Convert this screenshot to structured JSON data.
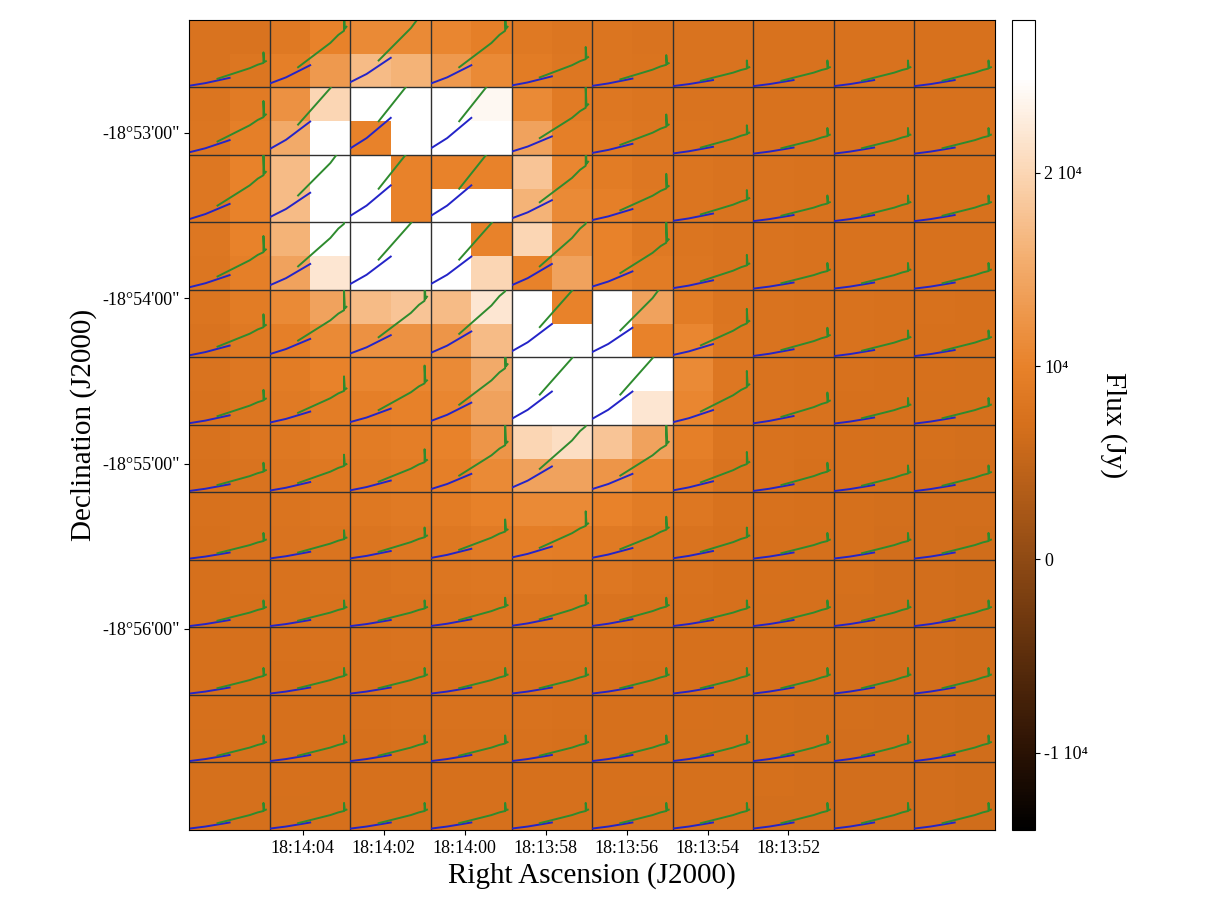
{
  "chart_data": {
    "type": "heatmap",
    "xlabel": "Right Ascension (J2000)",
    "ylabel": "Declination (J2000)",
    "xlim": [
      66.8,
      46.9
    ],
    "ylim": [
      -68233,
      -67939
    ],
    "xticks": [
      {
        "value": 64,
        "label": "18:14:04"
      },
      {
        "value": 62,
        "label": "18:14:02"
      },
      {
        "value": 60,
        "label": "18:14:00"
      },
      {
        "value": 58,
        "label": "18:13:58"
      },
      {
        "value": 56,
        "label": "18:13:56"
      },
      {
        "value": 54,
        "label": "18:13:54"
      },
      {
        "value": 52,
        "label": "18:13:52"
      }
    ],
    "yticks": [
      {
        "value": -67980,
        "label": "-18°53'00\""
      },
      {
        "value": -68040,
        "label": "-18°54'00\""
      },
      {
        "value": -68100,
        "label": "-18°55'00\""
      },
      {
        "value": -68160,
        "label": "-18°56'00\""
      }
    ],
    "cells": [
      [
        7500,
        7600,
        8500,
        10000,
        11000,
        11000,
        10500,
        9500,
        8500,
        8000,
        7800,
        7600,
        7500,
        7500,
        7400,
        7400,
        7300,
        7300,
        7200,
        7200
      ],
      [
        7600,
        8000,
        9500,
        13000,
        17000,
        16000,
        13000,
        11000,
        9000,
        8200,
        7900,
        7700,
        7500,
        7500,
        7400,
        7400,
        7300,
        7300,
        7200,
        7200
      ],
      [
        7800,
        8800,
        12000,
        20000,
        28000,
        29000,
        28000,
        24000,
        11000,
        8800,
        8200,
        7800,
        7600,
        7500,
        7400,
        7400,
        7300,
        7300,
        7200,
        7200
      ],
      [
        8000,
        9500,
        15000,
        27000,
        10000,
        29000,
        29000,
        28000,
        14000,
        9500,
        8500,
        8000,
        7700,
        7500,
        7400,
        7400,
        7300,
        7300,
        7200,
        7200
      ],
      [
        8200,
        10000,
        17000,
        28000,
        29000,
        10000,
        10000,
        10000,
        18000,
        10500,
        9000,
        8200,
        7800,
        7600,
        7500,
        7400,
        7300,
        7300,
        7200,
        7200
      ],
      [
        8200,
        10000,
        17000,
        28000,
        29000,
        10000,
        29000,
        28000,
        16000,
        11000,
        9500,
        8300,
        7800,
        7600,
        7500,
        7400,
        7300,
        7300,
        7200,
        7200
      ],
      [
        8200,
        10000,
        16000,
        27000,
        29000,
        29000,
        28000,
        10000,
        20000,
        12000,
        10000,
        8500,
        7900,
        7600,
        7500,
        7400,
        7300,
        7300,
        7200,
        7200
      ],
      [
        8000,
        9500,
        14000,
        22000,
        27000,
        28000,
        25000,
        20000,
        10000,
        14000,
        10000,
        9000,
        8000,
        7600,
        7500,
        7400,
        7300,
        7300,
        7200,
        7200
      ],
      [
        7800,
        9000,
        11000,
        14000,
        17000,
        18000,
        17000,
        22000,
        29000,
        10000,
        27000,
        14000,
        9000,
        7800,
        7500,
        7400,
        7300,
        7200,
        7200,
        7100
      ],
      [
        7600,
        8500,
        9500,
        11000,
        12000,
        12000,
        12500,
        17000,
        29000,
        29000,
        28000,
        10000,
        10500,
        8000,
        7500,
        7400,
        7300,
        7200,
        7100,
        7000
      ],
      [
        7500,
        8200,
        9000,
        10000,
        10500,
        10500,
        11000,
        15000,
        29000,
        29000,
        29000,
        26000,
        11000,
        8200,
        7600,
        7400,
        7200,
        7100,
        7000,
        6900
      ],
      [
        7400,
        8000,
        8600,
        9200,
        9500,
        9800,
        10500,
        14000,
        28000,
        29000,
        28000,
        22000,
        10500,
        8000,
        7500,
        7300,
        7100,
        7000,
        6900,
        6800
      ],
      [
        7300,
        7800,
        8300,
        8800,
        9000,
        9300,
        10000,
        12500,
        20000,
        21000,
        18000,
        14000,
        9500,
        7800,
        7400,
        7200,
        7000,
        6900,
        6800,
        6700
      ],
      [
        7200,
        7600,
        8000,
        8300,
        8600,
        9000,
        9500,
        11000,
        14000,
        14000,
        12500,
        10500,
        8800,
        7600,
        7300,
        7100,
        7000,
        6800,
        6700,
        6600
      ],
      [
        7200,
        7400,
        7700,
        8000,
        8300,
        8600,
        9000,
        9800,
        11000,
        11000,
        10000,
        9000,
        8200,
        7400,
        7200,
        7000,
        6900,
        6700,
        6600,
        6500
      ],
      [
        7100,
        7300,
        7500,
        7700,
        7900,
        8100,
        8400,
        8800,
        9300,
        9200,
        8700,
        8100,
        7600,
        7200,
        7000,
        6900,
        6800,
        6600,
        6500,
        6400
      ],
      [
        7100,
        7200,
        7400,
        7500,
        7600,
        7800,
        8000,
        8200,
        8500,
        8400,
        8100,
        7700,
        7400,
        7100,
        7000,
        6900,
        6800,
        6600,
        6500,
        6400
      ],
      [
        7000,
        7100,
        7300,
        7400,
        7500,
        7600,
        7700,
        7800,
        7900,
        7800,
        7600,
        7400,
        7200,
        7000,
        6900,
        6800,
        6700,
        6600,
        6500,
        6400
      ],
      [
        7000,
        7100,
        7200,
        7300,
        7400,
        7500,
        7500,
        7600,
        7600,
        7500,
        7400,
        7200,
        7100,
        7000,
        6900,
        6800,
        6700,
        6600,
        6500,
        6400
      ],
      [
        7000,
        7000,
        7100,
        7200,
        7300,
        7400,
        7400,
        7400,
        7400,
        7300,
        7200,
        7100,
        7000,
        6900,
        6800,
        6800,
        6700,
        6600,
        6500,
        6400
      ],
      [
        7000,
        7000,
        7100,
        7100,
        7200,
        7300,
        7300,
        7300,
        7300,
        7200,
        7100,
        7000,
        7000,
        6900,
        6800,
        6700,
        6700,
        6600,
        6500,
        6400
      ],
      [
        6900,
        7000,
        7000,
        7100,
        7100,
        7200,
        7200,
        7200,
        7200,
        7100,
        7100,
        7000,
        6900,
        6900,
        6800,
        6700,
        6600,
        6600,
        6500,
        6400
      ],
      [
        6900,
        6900,
        7000,
        7000,
        7100,
        7100,
        7100,
        7100,
        7100,
        7100,
        7000,
        7000,
        6900,
        6800,
        6800,
        6700,
        6600,
        6500,
        6500,
        6400
      ],
      [
        6900,
        6900,
        6900,
        7000,
        7000,
        7000,
        7000,
        7000,
        7000,
        7000,
        7000,
        6900,
        6900,
        6800,
        6700,
        6700,
        6600,
        6500,
        6500,
        6400
      ]
    ],
    "colorbar": {
      "lim": [
        -14000,
        27900
      ],
      "ticks": [
        {
          "value": -10000,
          "label": "-1 10⁴"
        },
        0,
        {
          "value": 10000,
          "label": "10⁴"
        },
        {
          "value": 20000,
          "label": "2 10⁴"
        }
      ],
      "label": "Flux (Jy)"
    },
    "spectra": {
      "series": [
        {
          "color": "#2424c8",
          "x": [
            0.0,
            0.1,
            0.2,
            0.3,
            0.4,
            0.5
          ],
          "y": [
            0.02,
            0.035,
            0.05,
            0.07,
            0.09,
            0.11
          ]
        },
        {
          "color": "#2e8b2e",
          "x": [
            0.35,
            0.45,
            0.55,
            0.65,
            0.75,
            0.85,
            0.92,
            0.92,
            0.93,
            0.95
          ],
          "y": [
            0.1,
            0.13,
            0.16,
            0.19,
            0.22,
            0.26,
            0.28,
            0.4,
            0.29,
            0.3
          ]
        }
      ],
      "amplitude": [
        [
          1.3,
          3.0,
          4.0,
          3.0,
          1.5,
          1.2,
          1.0,
          1.0,
          1.0,
          1.0
        ],
        [
          2.0,
          4.5,
          5.0,
          5.0,
          2.5,
          1.5,
          1.1,
          1.0,
          1.0,
          1.0
        ],
        [
          2.5,
          4.0,
          5.0,
          5.0,
          3.0,
          1.8,
          1.2,
          1.0,
          1.0,
          1.0
        ],
        [
          2.0,
          3.5,
          4.5,
          4.5,
          3.5,
          2.5,
          1.3,
          1.0,
          1.0,
          1.0
        ],
        [
          1.6,
          2.5,
          3.0,
          3.5,
          4.5,
          4.0,
          1.8,
          1.1,
          1.0,
          1.0
        ],
        [
          1.3,
          1.8,
          2.2,
          3.0,
          4.5,
          4.5,
          2.0,
          1.2,
          1.0,
          1.0
        ],
        [
          1.1,
          1.4,
          1.6,
          2.5,
          3.5,
          2.5,
          1.5,
          1.1,
          1.0,
          1.0
        ],
        [
          1.0,
          1.1,
          1.2,
          1.5,
          1.8,
          1.6,
          1.2,
          1.0,
          1.0,
          1.0
        ],
        [
          1.0,
          1.0,
          1.0,
          1.1,
          1.2,
          1.1,
          1.0,
          1.0,
          1.0,
          1.0
        ],
        [
          1.0,
          1.0,
          1.0,
          1.0,
          1.0,
          1.0,
          1.0,
          1.0,
          1.0,
          1.0
        ],
        [
          1.0,
          1.0,
          1.0,
          1.0,
          1.0,
          1.0,
          1.0,
          1.0,
          1.0,
          1.0
        ],
        [
          1.0,
          1.0,
          1.0,
          1.0,
          1.0,
          1.0,
          1.0,
          1.0,
          1.0,
          1.0
        ]
      ]
    }
  }
}
